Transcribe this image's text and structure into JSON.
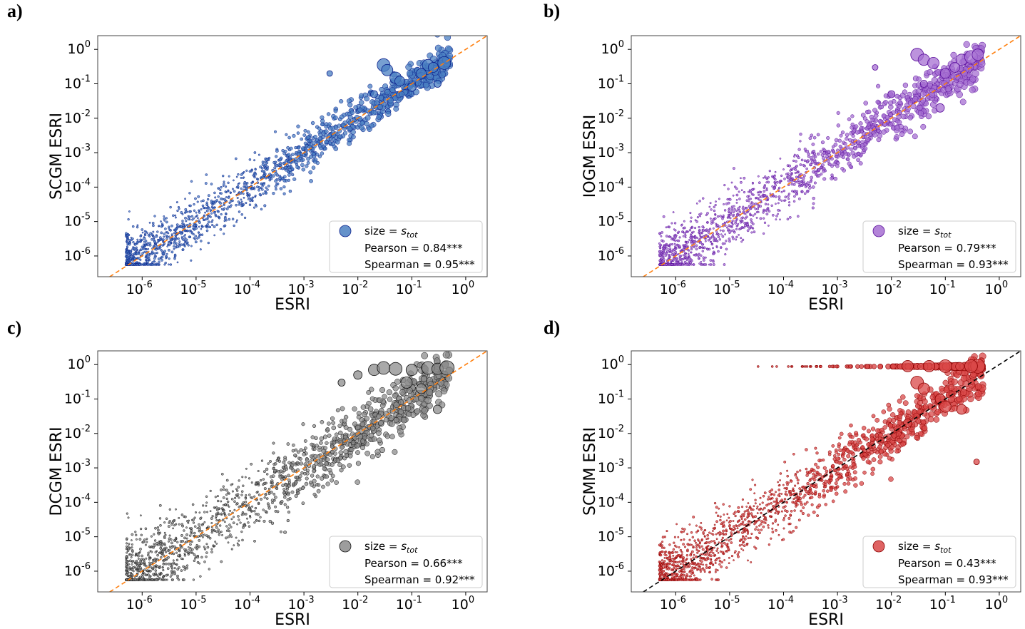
{
  "chart_data": [
    {
      "panel_label": "a)",
      "type": "scatter",
      "xscale": "log",
      "yscale": "log",
      "xlim": [
        1.5e-07,
        2.5
      ],
      "ylim": [
        2.5e-07,
        2.5
      ],
      "xlabel": "ESRI",
      "ylabel": "SCGM ESRI",
      "x_ticks": [
        1e-06,
        1e-05,
        0.0001,
        0.001,
        0.01,
        0.1,
        1
      ],
      "x_tick_labels": [
        [
          "10",
          "-6"
        ],
        [
          "10",
          "-5"
        ],
        [
          "10",
          "-4"
        ],
        [
          "10",
          "-3"
        ],
        [
          "10",
          "-2"
        ],
        [
          "10",
          "-1"
        ],
        [
          "10",
          "0"
        ]
      ],
      "y_ticks": [
        1e-06,
        1e-05,
        0.0001,
        0.001,
        0.01,
        0.1,
        1
      ],
      "y_tick_labels": [
        [
          "10",
          "-6"
        ],
        [
          "10",
          "-5"
        ],
        [
          "10",
          "-4"
        ],
        [
          "10",
          "-3"
        ],
        [
          "10",
          "-2"
        ],
        [
          "10",
          "-1"
        ],
        [
          "10",
          "0"
        ]
      ],
      "marker_fill": "#4a7fc1",
      "marker_edge": "#0a1f8c",
      "reference_line": {
        "style": "dashed",
        "color": "#ff7f0e",
        "relation": "y = x"
      },
      "legend": {
        "marker_label": "size = ",
        "marker_label_italic": "s",
        "marker_label_sub": "tot",
        "pearson": "Pearson = 0.84***",
        "spearman": "Spearman = 0.95***",
        "location": "lower right"
      },
      "pearson_r": 0.84,
      "spearman_rho": 0.95,
      "point_count_drawn": 1500,
      "scatter_sigma_decades": 0.36,
      "seed": 11,
      "highlight_points": [
        [
          0.03,
          0.35,
          9
        ],
        [
          0.035,
          0.25,
          8
        ],
        [
          0.05,
          0.15,
          8
        ],
        [
          0.06,
          0.12,
          7
        ],
        [
          0.2,
          0.35,
          8
        ],
        [
          0.25,
          0.3,
          7
        ],
        [
          0.4,
          0.4,
          9
        ],
        [
          0.15,
          0.2,
          7
        ],
        [
          0.1,
          0.08,
          6
        ],
        [
          0.02,
          0.05,
          5
        ],
        [
          0.003,
          0.2,
          4
        ],
        [
          0.3,
          0.1,
          5
        ]
      ]
    },
    {
      "panel_label": "b)",
      "type": "scatter",
      "xscale": "log",
      "yscale": "log",
      "xlim": [
        1.5e-07,
        2.5
      ],
      "ylim": [
        2.5e-07,
        2.5
      ],
      "xlabel": "ESRI",
      "ylabel": "IOGM ESRI",
      "x_ticks": [
        1e-06,
        1e-05,
        0.0001,
        0.001,
        0.01,
        0.1,
        1
      ],
      "x_tick_labels": [
        [
          "10",
          "-6"
        ],
        [
          "10",
          "-5"
        ],
        [
          "10",
          "-4"
        ],
        [
          "10",
          "-3"
        ],
        [
          "10",
          "-2"
        ],
        [
          "10",
          "-1"
        ],
        [
          "10",
          "0"
        ]
      ],
      "y_ticks": [
        1e-06,
        1e-05,
        0.0001,
        0.001,
        0.01,
        0.1,
        1
      ],
      "y_tick_labels": [
        [
          "10",
          "-6"
        ],
        [
          "10",
          "-5"
        ],
        [
          "10",
          "-4"
        ],
        [
          "10",
          "-3"
        ],
        [
          "10",
          "-2"
        ],
        [
          "10",
          "-1"
        ],
        [
          "10",
          "0"
        ]
      ],
      "marker_fill": "#a66fd1",
      "marker_edge": "#5a0e9c",
      "reference_line": {
        "style": "dashed",
        "color": "#ff7f0e",
        "relation": "y = x"
      },
      "legend": {
        "marker_label": "size = ",
        "marker_label_italic": "s",
        "marker_label_sub": "tot",
        "pearson": "Pearson = 0.79***",
        "spearman": "Spearman = 0.93***",
        "location": "lower right"
      },
      "pearson_r": 0.79,
      "spearman_rho": 0.93,
      "point_count_drawn": 1500,
      "scatter_sigma_decades": 0.4,
      "seed": 23,
      "highlight_points": [
        [
          0.03,
          0.7,
          9
        ],
        [
          0.04,
          0.5,
          8
        ],
        [
          0.06,
          0.4,
          8
        ],
        [
          0.1,
          0.2,
          7
        ],
        [
          0.2,
          0.5,
          8
        ],
        [
          0.3,
          0.6,
          9
        ],
        [
          0.4,
          0.7,
          8
        ],
        [
          0.15,
          0.3,
          7
        ],
        [
          0.08,
          0.02,
          6
        ],
        [
          0.04,
          0.1,
          5
        ],
        [
          0.01,
          0.05,
          5
        ],
        [
          0.005,
          0.3,
          4
        ]
      ]
    },
    {
      "panel_label": "c)",
      "type": "scatter",
      "xscale": "log",
      "yscale": "log",
      "xlim": [
        1.5e-07,
        2.5
      ],
      "ylim": [
        2.5e-07,
        2.5
      ],
      "xlabel": "ESRI",
      "ylabel": "DCGM ESRI",
      "x_ticks": [
        1e-06,
        1e-05,
        0.0001,
        0.001,
        0.01,
        0.1,
        1
      ],
      "x_tick_labels": [
        [
          "10",
          "-6"
        ],
        [
          "10",
          "-5"
        ],
        [
          "10",
          "-4"
        ],
        [
          "10",
          "-3"
        ],
        [
          "10",
          "-2"
        ],
        [
          "10",
          "-1"
        ],
        [
          "10",
          "0"
        ]
      ],
      "y_ticks": [
        1e-06,
        1e-05,
        0.0001,
        0.001,
        0.01,
        0.1,
        1
      ],
      "y_tick_labels": [
        [
          "10",
          "-6"
        ],
        [
          "10",
          "-5"
        ],
        [
          "10",
          "-4"
        ],
        [
          "10",
          "-3"
        ],
        [
          "10",
          "-2"
        ],
        [
          "10",
          "-1"
        ],
        [
          "10",
          "0"
        ]
      ],
      "marker_fill": "#8c8c8c",
      "marker_edge": "#111111",
      "reference_line": {
        "style": "dashed",
        "color": "#ff7f0e",
        "relation": "y = x"
      },
      "legend": {
        "marker_label": "size = ",
        "marker_label_italic": "s",
        "marker_label_sub": "tot",
        "pearson": "Pearson = 0.66***",
        "spearman": "Spearman = 0.92***",
        "location": "lower right"
      },
      "pearson_r": 0.66,
      "spearman_rho": 0.92,
      "point_count_drawn": 1500,
      "scatter_sigma_decades": 0.5,
      "seed": 37,
      "highlight_points": [
        [
          0.02,
          0.7,
          8
        ],
        [
          0.03,
          0.8,
          9
        ],
        [
          0.05,
          0.75,
          9
        ],
        [
          0.1,
          0.7,
          8
        ],
        [
          0.2,
          0.8,
          9
        ],
        [
          0.3,
          0.75,
          8
        ],
        [
          0.45,
          0.8,
          10
        ],
        [
          0.08,
          0.3,
          8
        ],
        [
          0.15,
          0.2,
          7
        ],
        [
          0.01,
          0.5,
          6
        ],
        [
          0.005,
          0.3,
          5
        ],
        [
          0.3,
          0.05,
          6
        ]
      ]
    },
    {
      "panel_label": "d)",
      "type": "scatter",
      "xscale": "log",
      "yscale": "log",
      "xlim": [
        1.5e-07,
        2.5
      ],
      "ylim": [
        2.5e-07,
        2.5
      ],
      "xlabel": "ESRI",
      "ylabel": "SCMM ESRI",
      "x_ticks": [
        1e-06,
        1e-05,
        0.0001,
        0.001,
        0.01,
        0.1,
        1
      ],
      "x_tick_labels": [
        [
          "10",
          "-6"
        ],
        [
          "10",
          "-5"
        ],
        [
          "10",
          "-4"
        ],
        [
          "10",
          "-3"
        ],
        [
          "10",
          "-2"
        ],
        [
          "10",
          "-1"
        ],
        [
          "10",
          "0"
        ]
      ],
      "y_ticks": [
        1e-06,
        1e-05,
        0.0001,
        0.001,
        0.01,
        0.1,
        1
      ],
      "y_tick_labels": [
        [
          "10",
          "-6"
        ],
        [
          "10",
          "-5"
        ],
        [
          "10",
          "-4"
        ],
        [
          "10",
          "-3"
        ],
        [
          "10",
          "-2"
        ],
        [
          "10",
          "-1"
        ],
        [
          "10",
          "0"
        ]
      ],
      "marker_fill": "#d94848",
      "marker_edge": "#8c0000",
      "reference_line": {
        "style": "dashed",
        "color": "#000000",
        "relation": "y = x"
      },
      "legend": {
        "marker_label": "size = ",
        "marker_label_italic": "s",
        "marker_label_sub": "tot",
        "pearson": "Pearson = 0.43***",
        "spearman": "Spearman = 0.93***",
        "location": "lower right"
      },
      "pearson_r": 0.43,
      "spearman_rho": 0.93,
      "point_count_drawn": 1500,
      "scatter_sigma_decades": 0.42,
      "seed": 53,
      "saturated_row_y": 0.88,
      "highlight_points": [
        [
          0.03,
          0.3,
          9
        ],
        [
          0.04,
          0.2,
          8
        ],
        [
          0.08,
          0.1,
          7
        ],
        [
          0.1,
          0.06,
          8
        ],
        [
          0.2,
          0.05,
          7
        ],
        [
          0.02,
          0.02,
          6
        ],
        [
          0.4,
          0.9,
          10
        ],
        [
          0.3,
          0.9,
          9
        ],
        [
          0.1,
          0.9,
          9
        ],
        [
          0.05,
          0.9,
          8
        ],
        [
          0.02,
          0.9,
          8
        ],
        [
          0.38,
          0.0015,
          4
        ]
      ]
    }
  ]
}
